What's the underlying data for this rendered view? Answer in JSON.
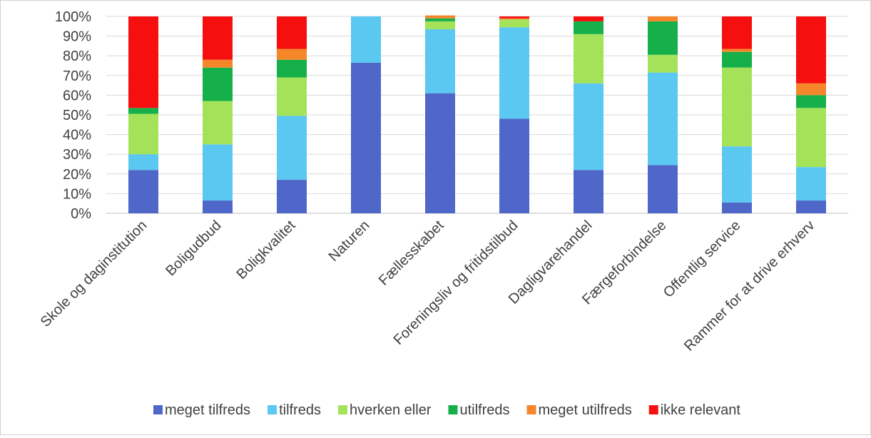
{
  "chart_data": {
    "type": "bar",
    "stacked": true,
    "percent": true,
    "categories": [
      "Skole og daginstitution",
      "Boligudbud",
      "Boligkvalitet",
      "Naturen",
      "Fællesskabet",
      "Foreningsliv og fritidstilbud",
      "Dagligvarehandel",
      "Færgeforbindelse",
      "Offentlig service",
      "Rammer for at drive erhverv"
    ],
    "series": [
      {
        "name": "meget tilfreds",
        "color": "#4F67C9",
        "values": [
          22,
          6.5,
          17,
          76.5,
          61,
          48,
          22,
          24.5,
          5.5,
          6.5
        ]
      },
      {
        "name": "tilfreds",
        "color": "#5BC8F2",
        "values": [
          8,
          28.5,
          32.5,
          23.5,
          32.5,
          46.5,
          44,
          47,
          28.5,
          17
        ]
      },
      {
        "name": "hverken eller",
        "color": "#A4E359",
        "values": [
          20.5,
          22,
          19.5,
          0,
          4,
          4,
          25,
          9,
          40,
          30
        ]
      },
      {
        "name": "utilfreds",
        "color": "#16B04A",
        "values": [
          3,
          17,
          9,
          0,
          1.5,
          0,
          6.5,
          17,
          8,
          6.5
        ]
      },
      {
        "name": "meget utilfreds",
        "color": "#F5862A",
        "values": [
          0,
          4,
          5.5,
          0,
          1.5,
          0.5,
          0,
          2.5,
          1.5,
          6
        ]
      },
      {
        "name": "ikke relevant",
        "color": "#F50F0F",
        "values": [
          46.5,
          22,
          16.5,
          0,
          0,
          1,
          2.5,
          0,
          16.5,
          34
        ]
      }
    ],
    "y_ticks": [
      "0%",
      "10%",
      "20%",
      "30%",
      "40%",
      "50%",
      "60%",
      "70%",
      "80%",
      "90%",
      "100%"
    ],
    "ylim": [
      0,
      100
    ],
    "grid": true,
    "legend_position": "bottom"
  }
}
